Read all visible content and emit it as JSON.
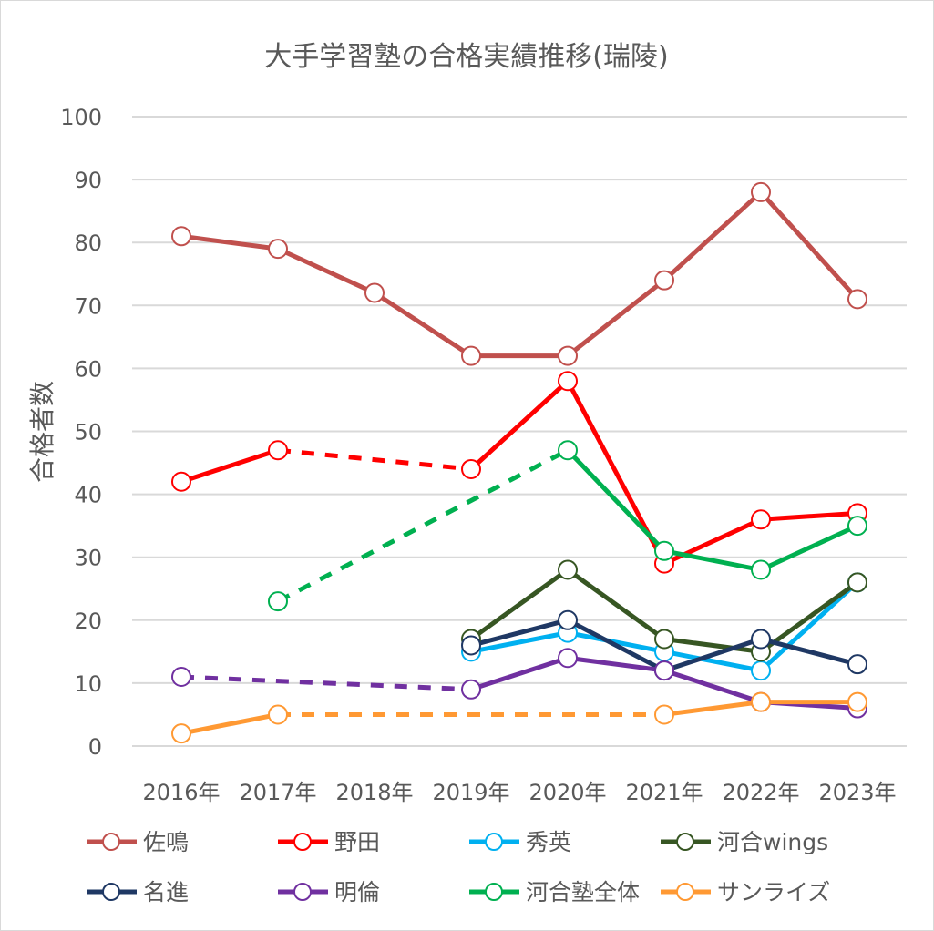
{
  "chart_data": {
    "type": "line",
    "title": "大手学習塾の合格実績推移(瑞陵)",
    "xlabel": "",
    "ylabel": "合格者数",
    "ylim": [
      0,
      100
    ],
    "yticks": [
      0,
      10,
      20,
      30,
      40,
      50,
      60,
      70,
      80,
      90,
      100
    ],
    "grid": true,
    "legend_position": "bottom",
    "categories": [
      "2016年",
      "2017年",
      "2018年",
      "2019年",
      "2020年",
      "2021年",
      "2022年",
      "2023年"
    ],
    "series": [
      {
        "name": "佐鳴",
        "color": "#c0504d",
        "values": [
          81,
          79,
          72,
          62,
          62,
          74,
          88,
          71
        ]
      },
      {
        "name": "野田",
        "color": "#ff0000",
        "values": [
          42,
          47,
          null,
          44,
          58,
          29,
          36,
          37
        ]
      },
      {
        "name": "秀英",
        "color": "#00b0f0",
        "values": [
          null,
          null,
          null,
          15,
          18,
          15,
          12,
          26
        ]
      },
      {
        "name": "河合wings",
        "color": "#375623",
        "values": [
          null,
          null,
          null,
          17,
          28,
          17,
          15,
          26
        ]
      },
      {
        "name": "名進",
        "color": "#1f3864",
        "values": [
          null,
          null,
          null,
          16,
          20,
          12,
          17,
          13
        ]
      },
      {
        "name": "明倫",
        "color": "#7030a0",
        "values": [
          11,
          null,
          null,
          9,
          14,
          12,
          7,
          6
        ]
      },
      {
        "name": "河合塾全体",
        "color": "#00b050",
        "values": [
          null,
          23,
          null,
          null,
          47,
          31,
          28,
          35
        ]
      },
      {
        "name": "サンライズ",
        "color": "#ff9933",
        "values": [
          2,
          5,
          null,
          null,
          null,
          5,
          7,
          7
        ]
      }
    ],
    "gaps_drawn_as": "dashed"
  }
}
